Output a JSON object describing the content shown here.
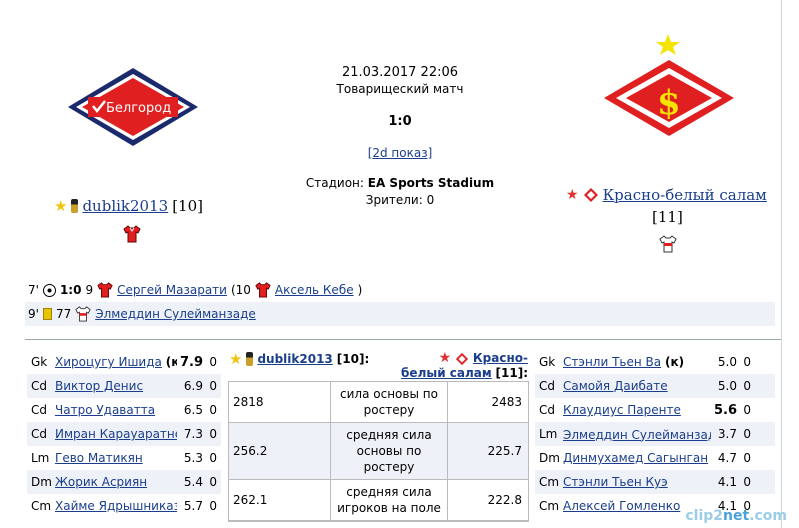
{
  "match": {
    "datetime": "21.03.2017 22:06",
    "type": "Товарищеский матч",
    "score": "1:0",
    "show2d": "[2d показ]",
    "stadium_label": "Стадион:",
    "stadium_name": "EA Sports Stadium",
    "spectators": "Зрители: 0"
  },
  "home": {
    "logo_text": "Белгород",
    "name": "dublik2013",
    "rating": "[10]",
    "colors": {
      "primary": "#e02020",
      "secondary": "#ffffff",
      "dark": "#1a2a6c"
    }
  },
  "away": {
    "name": "Красно-белый салам",
    "rating": "[11]",
    "colors": {
      "primary": "#e02020",
      "accent": "#f7e300"
    }
  },
  "events": [
    {
      "minute": "7'",
      "icon": "ball-icon",
      "score": "1:0",
      "num": "9",
      "player": "Сергей Мазарати",
      "assist_prefix": "(10",
      "assist": "Аксель Кебе",
      "assist_suffix": ")"
    },
    {
      "minute": "9'",
      "icon": "yellow-card-icon",
      "num": "77",
      "player": "Элмеддин Сулейманзаде"
    }
  ],
  "home_lineup": [
    {
      "pos": "Gk",
      "name": "Хироцугу Ишида",
      "extra": "(к)",
      "rating": "7.9",
      "x": "0",
      "bold": true
    },
    {
      "pos": "Cd",
      "name": "Виктор Денис",
      "rating": "6.9",
      "x": "0"
    },
    {
      "pos": "Cd",
      "name": "Чатро Удаватта",
      "rating": "6.5",
      "x": "0"
    },
    {
      "pos": "Cd",
      "name": "Имран Карауаратне",
      "rating": "7.3",
      "x": "0"
    },
    {
      "pos": "Lm",
      "name": "Гево Матикян",
      "rating": "5.3",
      "x": "0"
    },
    {
      "pos": "Dm",
      "name": "Жорик Асриян",
      "rating": "5.4",
      "x": "0"
    },
    {
      "pos": "Cm",
      "name": "Хайме Ядрышниказ",
      "rating": "5.7",
      "x": "0"
    }
  ],
  "away_lineup": [
    {
      "pos": "Gk",
      "name": "Стэнли Тьен Ва",
      "extra": "(к)",
      "rating": "5.0",
      "x": "0"
    },
    {
      "pos": "Cd",
      "name": "Самойя Даибате",
      "rating": "5.0",
      "x": "0"
    },
    {
      "pos": "Cd",
      "name": "Клаудиус Паренте",
      "rating": "5.6",
      "x": "0",
      "bold": true
    },
    {
      "pos": "Lm",
      "name": "Элмеддин Сулейманзаде",
      "rating": "3.7",
      "x": "0",
      "card": true
    },
    {
      "pos": "Dm",
      "name": "Динмухамед Сагынган",
      "rating": "4.7",
      "x": "0"
    },
    {
      "pos": "Cm",
      "name": "Стэнли Тьен Куэ",
      "rating": "4.1",
      "x": "0"
    },
    {
      "pos": "Cm",
      "name": "Алексей Гомленко",
      "rating": "4.1",
      "x": "0"
    }
  ],
  "compare": {
    "home_head": "dublik2013",
    "home_head_rating": "[10]:",
    "away_head": "Красно-белый салам",
    "away_head_rating": "[11]:",
    "rows": [
      {
        "home": "2818",
        "label": "сила основы по ростеру",
        "away": "2483"
      },
      {
        "home": "256.2",
        "label": "средняя сила основы по ростеру",
        "away": "225.7"
      },
      {
        "home": "262.1",
        "label": "средняя сила игроков на поле",
        "away": "222.8"
      }
    ]
  },
  "watermark": {
    "a": "clip2",
    "b": "net",
    "c": ".com"
  }
}
